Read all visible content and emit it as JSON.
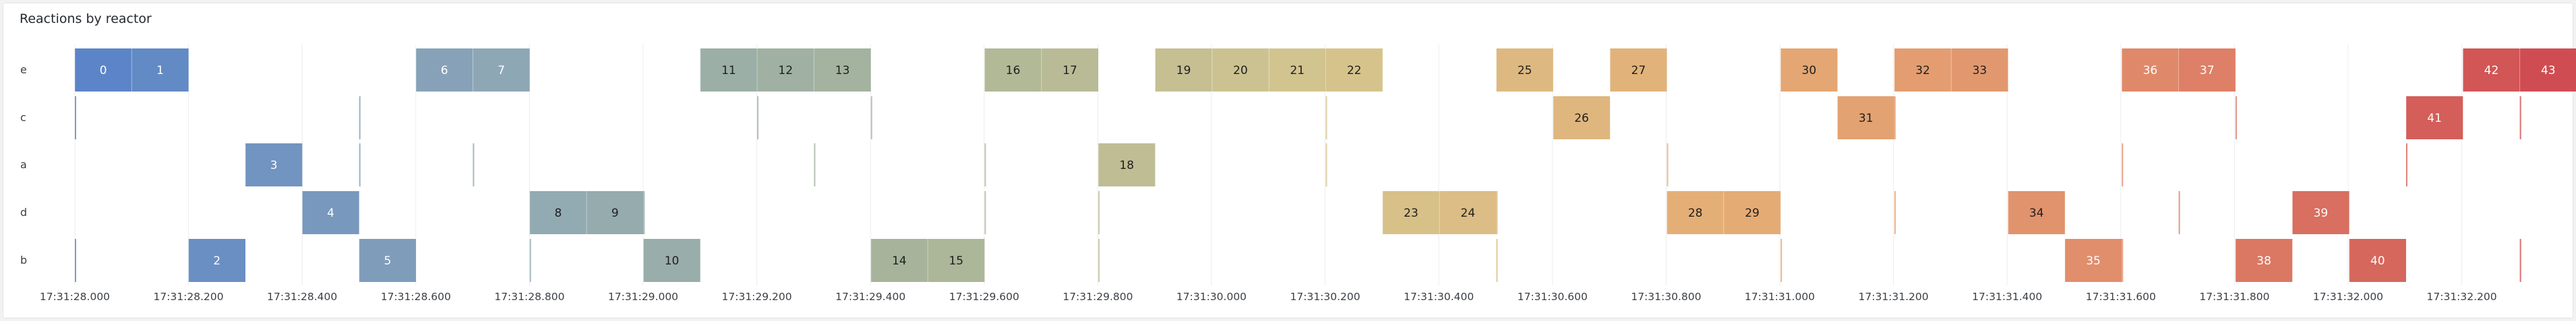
{
  "panel": {
    "title": "Reactions by reactor"
  },
  "chart_data": {
    "type": "timeline",
    "title": "Reactions by reactor",
    "lanes": [
      "e",
      "c",
      "a",
      "d",
      "b"
    ],
    "x_ticks": [
      "17:31:28.000",
      "17:31:28.200",
      "17:31:28.400",
      "17:31:28.600",
      "17:31:28.800",
      "17:31:29.000",
      "17:31:29.200",
      "17:31:29.400",
      "17:31:29.600",
      "17:31:29.800",
      "17:31:30.000",
      "17:31:30.200",
      "17:31:30.400",
      "17:31:30.600",
      "17:31:30.800",
      "17:31:31.000",
      "17:31:31.200",
      "17:31:31.400",
      "17:31:31.600",
      "17:31:31.800",
      "17:31:32.000",
      "17:31:32.200"
    ],
    "x_range_ms": [
      0,
      2300
    ],
    "grid": true,
    "blocks": [
      {
        "lane": "e",
        "label": "0",
        "start": 0,
        "end": 100
      },
      {
        "lane": "e",
        "label": "1",
        "start": 100,
        "end": 200
      },
      {
        "lane": "e",
        "label": "6",
        "start": 600,
        "end": 700
      },
      {
        "lane": "e",
        "label": "7",
        "start": 700,
        "end": 800
      },
      {
        "lane": "e",
        "label": "11",
        "start": 1100,
        "end": 1200
      },
      {
        "lane": "e",
        "label": "12",
        "start": 1200,
        "end": 1300
      },
      {
        "lane": "e",
        "label": "13",
        "start": 1300,
        "end": 1400
      },
      {
        "lane": "e",
        "label": "16",
        "start": 1600,
        "end": 1700
      },
      {
        "lane": "e",
        "label": "17",
        "start": 1700,
        "end": 1800
      },
      {
        "lane": "e",
        "label": "19",
        "start": 1900,
        "end": 2000
      },
      {
        "lane": "e",
        "label": "20",
        "start": 2000,
        "end": 2100
      },
      {
        "lane": "e",
        "label": "21",
        "start": 2100,
        "end": 2200
      },
      {
        "lane": "e",
        "label": "22",
        "start": 2200,
        "end": 2300
      },
      {
        "lane": "e",
        "label": "25",
        "start": 2500,
        "end": 2600
      },
      {
        "lane": "e",
        "label": "27",
        "start": 2700,
        "end": 2800
      },
      {
        "lane": "e",
        "label": "30",
        "start": 3000,
        "end": 3100
      },
      {
        "lane": "e",
        "label": "32",
        "start": 3200,
        "end": 3300
      },
      {
        "lane": "e",
        "label": "33",
        "start": 3300,
        "end": 3400
      },
      {
        "lane": "e",
        "label": "36",
        "start": 3600,
        "end": 3700
      },
      {
        "lane": "e",
        "label": "37",
        "start": 3700,
        "end": 3800
      },
      {
        "lane": "e",
        "label": "42",
        "start": 4200,
        "end": 4300
      },
      {
        "lane": "e",
        "label": "43",
        "start": 4300,
        "end": 4400
      },
      {
        "lane": "c",
        "label": "26",
        "start": 2600,
        "end": 2700
      },
      {
        "lane": "c",
        "label": "31",
        "start": 3100,
        "end": 3200
      },
      {
        "lane": "c",
        "label": "41",
        "start": 4100,
        "end": 4200
      },
      {
        "lane": "a",
        "label": "3",
        "start": 300,
        "end": 400
      },
      {
        "lane": "a",
        "label": "18",
        "start": 1800,
        "end": 1900
      },
      {
        "lane": "d",
        "label": "4",
        "start": 400,
        "end": 500
      },
      {
        "lane": "d",
        "label": "8",
        "start": 800,
        "end": 900
      },
      {
        "lane": "d",
        "label": "9",
        "start": 900,
        "end": 1000
      },
      {
        "lane": "d",
        "label": "23",
        "start": 2300,
        "end": 2400
      },
      {
        "lane": "d",
        "label": "24",
        "start": 2400,
        "end": 2500
      },
      {
        "lane": "d",
        "label": "28",
        "start": 2800,
        "end": 2900
      },
      {
        "lane": "d",
        "label": "29",
        "start": 2900,
        "end": 3000
      },
      {
        "lane": "d",
        "label": "34",
        "start": 3400,
        "end": 3500
      },
      {
        "lane": "d",
        "label": "39",
        "start": 3900,
        "end": 4000
      },
      {
        "lane": "b",
        "label": "2",
        "start": 200,
        "end": 300
      },
      {
        "lane": "b",
        "label": "5",
        "start": 500,
        "end": 600
      },
      {
        "lane": "b",
        "label": "10",
        "start": 1000,
        "end": 1100
      },
      {
        "lane": "b",
        "label": "14",
        "start": 1400,
        "end": 1500
      },
      {
        "lane": "b",
        "label": "15",
        "start": 1500,
        "end": 1600
      },
      {
        "lane": "b",
        "label": "35",
        "start": 3500,
        "end": 3600
      },
      {
        "lane": "b",
        "label": "38",
        "start": 3800,
        "end": 3900
      },
      {
        "lane": "b",
        "label": "40",
        "start": 4000,
        "end": 4100
      }
    ],
    "color_scale": [
      "#5b85c8",
      "#8fa8b5",
      "#a8b59a",
      "#d5c58e",
      "#e5ad74",
      "#e08a6b",
      "#cf4d52"
    ]
  }
}
